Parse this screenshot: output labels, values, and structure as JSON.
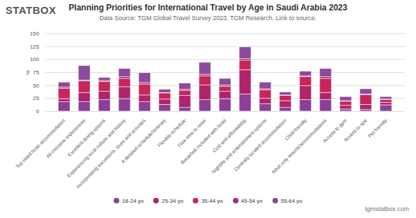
{
  "header": {
    "logo": "STATBOX"
  },
  "footer": "tgmstatbox.com",
  "chart_data": {
    "type": "bar",
    "stacked": true,
    "title": "Planning Priorities for International Travel by Age in Saudi Arabia 2023",
    "subtitle": "Data Source: TGM Global Travel Survey 2023, TGM Research. Link to source.",
    "y_label": "%",
    "categories": [
      "Top rated hotel accommodation",
      "All-inclusive experiences",
      "Excellent dining options",
      "Experiencing local culture and history",
      "Incorporating excursions, tours and activities",
      "A detailed schedule/itinerary",
      "Flexible schedule",
      "Free time to relax",
      "Breakfast included with hotel",
      "Cost and affordability",
      "Nightlife and entertainment options",
      "Centrally located accommodation",
      "Child friendly",
      "Adult only resorts/accommodations",
      "Access to gym",
      "Access to spa",
      "Pet friendly"
    ],
    "series": [
      {
        "name": "18-24 yo",
        "color": "#8b3f96",
        "values": [
          18,
          18,
          22,
          24,
          18,
          13,
          7,
          22,
          24,
          33,
          14,
          7,
          22,
          22,
          4,
          3,
          12
        ]
      },
      {
        "name": "25-34 yo",
        "color": "#b0246c",
        "values": [
          6,
          18,
          16,
          23,
          13,
          10,
          23,
          28,
          14,
          47,
          11,
          13,
          27,
          14,
          7,
          10,
          5
        ]
      },
      {
        "name": "35-44 yo",
        "color": "#c8255a",
        "values": [
          20,
          22,
          19,
          16,
          21,
          12,
          10,
          18,
          10,
          18,
          16,
          10,
          17,
          27,
          8,
          19,
          5
        ]
      },
      {
        "name": "45-54 yo",
        "color": "#a82b7b",
        "values": [
          2,
          2,
          2,
          3,
          3,
          1,
          2,
          3,
          2,
          3,
          2,
          1,
          2,
          3,
          1,
          1,
          1
        ]
      },
      {
        "name": "55-64 yo",
        "color": "#8c4a9c",
        "values": [
          10,
          28,
          6,
          16,
          19,
          6,
          12,
          23,
          13,
          23,
          13,
          6,
          9,
          16,
          8,
          10,
          5
        ]
      }
    ],
    "ylim": [
      0,
      150
    ],
    "yticks": [
      0,
      25,
      50,
      75,
      100,
      125,
      150
    ],
    "grid": true,
    "legend": "bottom"
  }
}
